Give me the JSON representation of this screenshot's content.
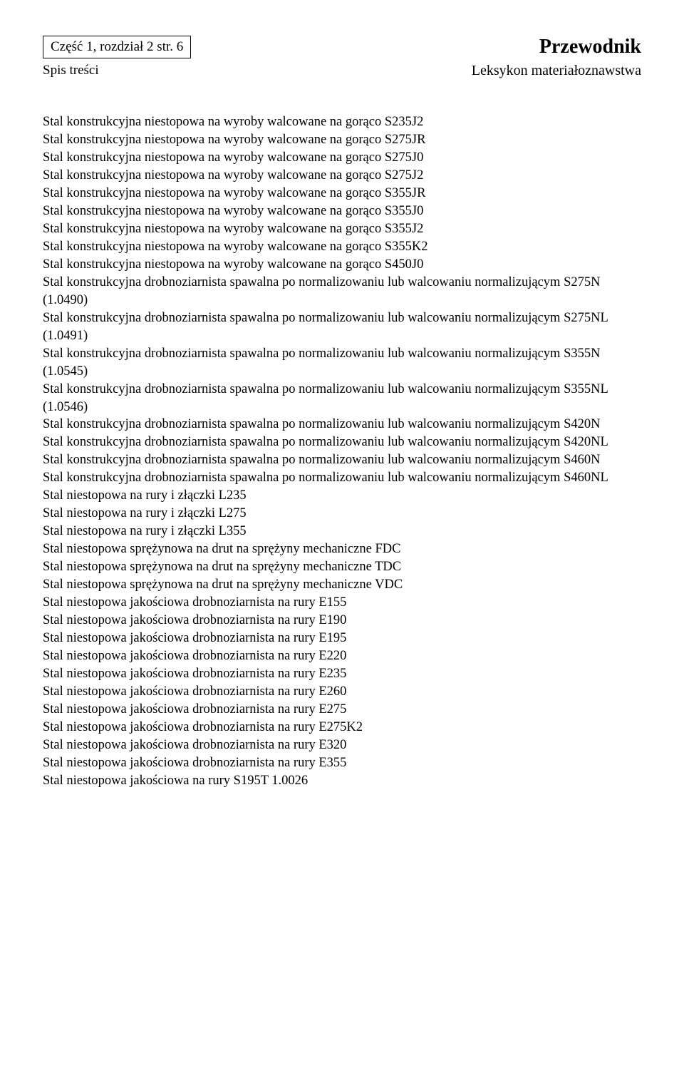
{
  "header": {
    "box_text": "Część 1, rozdział 2            str. 6",
    "title": "Przewodnik",
    "sub_left": "Spis treści",
    "sub_right": "Leksykon materiałoznawstwa"
  },
  "lines": [
    "Stal konstrukcyjna niestopowa na wyroby walcowane na gorąco S235J2",
    "Stal konstrukcyjna niestopowa na wyroby walcowane na gorąco S275JR",
    "Stal konstrukcyjna niestopowa na wyroby walcowane na gorąco S275J0",
    "Stal konstrukcyjna niestopowa na wyroby walcowane na gorąco S275J2",
    "Stal konstrukcyjna niestopowa na wyroby walcowane na gorąco S355JR",
    "Stal konstrukcyjna niestopowa na wyroby walcowane na gorąco S355J0",
    "Stal konstrukcyjna niestopowa na wyroby walcowane na gorąco S355J2",
    "Stal konstrukcyjna niestopowa na wyroby walcowane na gorąco S355K2",
    "Stal konstrukcyjna niestopowa na wyroby walcowane na gorąco S450J0",
    "Stal konstrukcyjna drobnoziarnista spawalna po normalizowaniu lub walcowaniu normalizującym S275N (1.0490)",
    "Stal konstrukcyjna drobnoziarnista spawalna po normalizowaniu lub walcowaniu normalizującym S275NL (1.0491)",
    "Stal konstrukcyjna drobnoziarnista spawalna po normalizowaniu lub walcowaniu normalizującym S355N (1.0545)",
    "Stal konstrukcyjna drobnoziarnista spawalna po normalizowaniu lub walcowaniu normalizującym S355NL (1.0546)",
    "Stal konstrukcyjna drobnoziarnista spawalna po normalizowaniu lub walcowaniu normalizującym S420N",
    "Stal konstrukcyjna drobnoziarnista spawalna po normalizowaniu lub walcowaniu normalizującym S420NL",
    "Stal konstrukcyjna drobnoziarnista spawalna po normalizowaniu lub walcowaniu normalizującym S460N",
    "Stal konstrukcyjna drobnoziarnista spawalna po normalizowaniu lub walcowaniu normalizującym S460NL",
    "Stal niestopowa na rury i złączki L235",
    "Stal niestopowa na rury i złączki L275",
    "Stal niestopowa na rury i złączki L355",
    "Stal niestopowa sprężynowa na drut na sprężyny mechaniczne FDC",
    "Stal niestopowa sprężynowa na drut na sprężyny mechaniczne TDC",
    "Stal niestopowa sprężynowa na drut na sprężyny mechaniczne VDC",
    "Stal niestopowa jakościowa drobnoziarnista na rury E155",
    "Stal niestopowa jakościowa drobnoziarnista na rury E190",
    "Stal niestopowa jakościowa drobnoziarnista na rury E195",
    "Stal niestopowa jakościowa drobnoziarnista na rury E220",
    "Stal niestopowa jakościowa drobnoziarnista na rury E235",
    "Stal niestopowa jakościowa drobnoziarnista na rury E260",
    "Stal niestopowa jakościowa drobnoziarnista na rury E275",
    "Stal niestopowa jakościowa drobnoziarnista na rury E275K2",
    "Stal niestopowa jakościowa drobnoziarnista na rury E320",
    "Stal niestopowa jakościowa drobnoziarnista na rury E355",
    "Stal niestopowa jakościowa na rury S195T 1.0026"
  ],
  "colors": {
    "background": "#ffffff",
    "text": "#000000",
    "border": "#000000"
  },
  "typography": {
    "font_family": "Times New Roman",
    "body_fontsize": 18.5,
    "title_fontsize": 28,
    "header_fontsize": 19
  }
}
